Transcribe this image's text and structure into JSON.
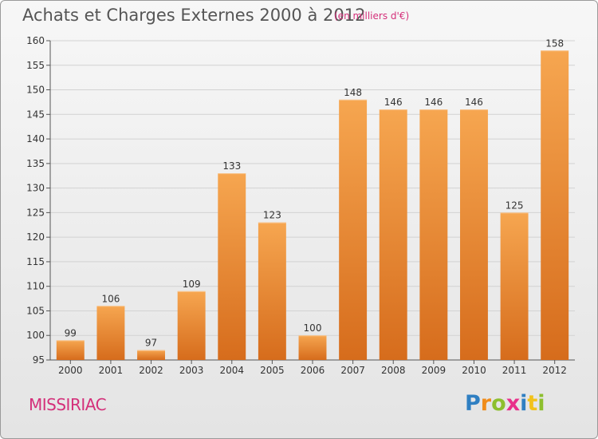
{
  "title": "Achats et Charges Externes 2000 à 2012",
  "subtitle": "(en milliers d'€)",
  "town": "MISSIRIAC",
  "brand": {
    "letters": [
      {
        "ch": "P",
        "color": "#2f7fc2"
      },
      {
        "ch": "r",
        "color": "#f08c1a"
      },
      {
        "ch": "o",
        "color": "#8dbf2e"
      },
      {
        "ch": "x",
        "color": "#e8308a"
      },
      {
        "ch": "i",
        "color": "#2f7fc2"
      },
      {
        "ch": "t",
        "color": "#f2c21b"
      },
      {
        "ch": "i",
        "color": "#8dbf2e"
      }
    ]
  },
  "colors": {
    "bar_top": "#f6a650",
    "bar_bottom": "#d66c1c",
    "grid": "#d2d2d2",
    "accent": "#d4307a"
  },
  "chart_data": {
    "type": "bar",
    "categories": [
      "2000",
      "2001",
      "2002",
      "2003",
      "2004",
      "2005",
      "2006",
      "2007",
      "2008",
      "2009",
      "2010",
      "2011",
      "2012"
    ],
    "values": [
      99,
      106,
      97,
      109,
      133,
      123,
      100,
      148,
      146,
      146,
      146,
      125,
      158
    ],
    "title": "Achats et Charges Externes 2000 à 2012",
    "xlabel": "",
    "ylabel": "",
    "ylim": [
      95,
      160
    ],
    "yticks": [
      95,
      100,
      105,
      110,
      115,
      120,
      125,
      130,
      135,
      140,
      145,
      150,
      155,
      160
    ],
    "grid": true
  }
}
